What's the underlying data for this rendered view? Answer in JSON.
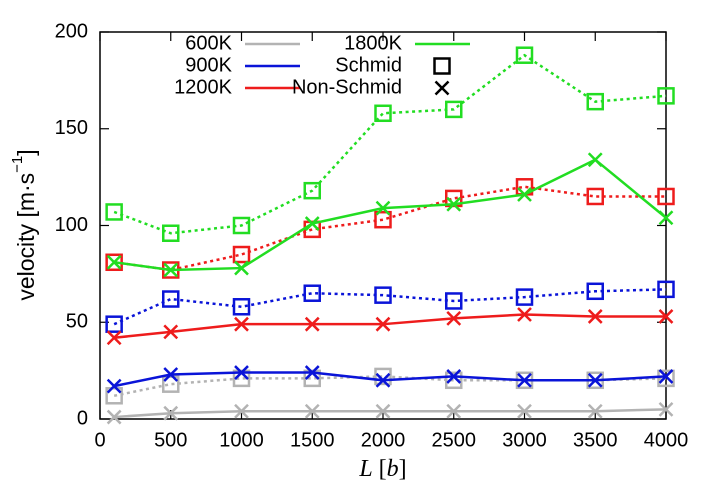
{
  "chart_data": {
    "type": "line",
    "xlabel": {
      "var": "L",
      "open": " [",
      "unit": "b",
      "close": "]"
    },
    "ylabel": {
      "text": "velocity [m·s",
      "superscript": "−1",
      "suffix": "]"
    },
    "x": [
      100,
      500,
      1000,
      1500,
      2000,
      2500,
      3000,
      3500,
      4000
    ],
    "xlim": [
      0,
      4000
    ],
    "xticks": [
      0,
      500,
      1000,
      1500,
      2000,
      2500,
      3000,
      3500,
      4000
    ],
    "ylim": [
      0,
      200
    ],
    "yticks": [
      0,
      50,
      100,
      150,
      200
    ],
    "grid": false,
    "legend": "top-left",
    "variants": [
      {
        "name": "Schmid",
        "dash": "dotted",
        "marker": "square"
      },
      {
        "name": "Non-Schmid",
        "dash": "solid",
        "marker": "cross"
      }
    ],
    "series": [
      {
        "name": "600K",
        "color": "#b3b3b3",
        "values": [
          [
            12,
            18,
            21,
            21,
            22,
            20,
            20,
            20,
            21
          ],
          [
            1,
            3,
            4,
            4,
            4,
            4,
            4,
            4,
            5
          ]
        ]
      },
      {
        "name": "900K",
        "color": "#0a14d8",
        "values": [
          [
            49,
            62,
            58,
            65,
            64,
            61,
            63,
            66,
            67
          ],
          [
            17,
            23,
            24,
            24,
            20,
            22,
            20,
            20,
            22
          ]
        ]
      },
      {
        "name": "1200K",
        "color": "#ee1c1c",
        "values": [
          [
            81,
            77,
            85,
            98,
            103,
            114,
            120,
            115,
            115
          ],
          [
            42,
            45,
            49,
            49,
            49,
            52,
            54,
            53,
            53
          ]
        ]
      },
      {
        "name": "1800K",
        "color": "#22dd22",
        "values": [
          [
            107,
            96,
            100,
            118,
            158,
            160,
            188,
            164,
            167
          ],
          [
            81,
            77,
            78,
            101,
            109,
            111,
            116,
            134,
            104
          ]
        ]
      }
    ]
  }
}
